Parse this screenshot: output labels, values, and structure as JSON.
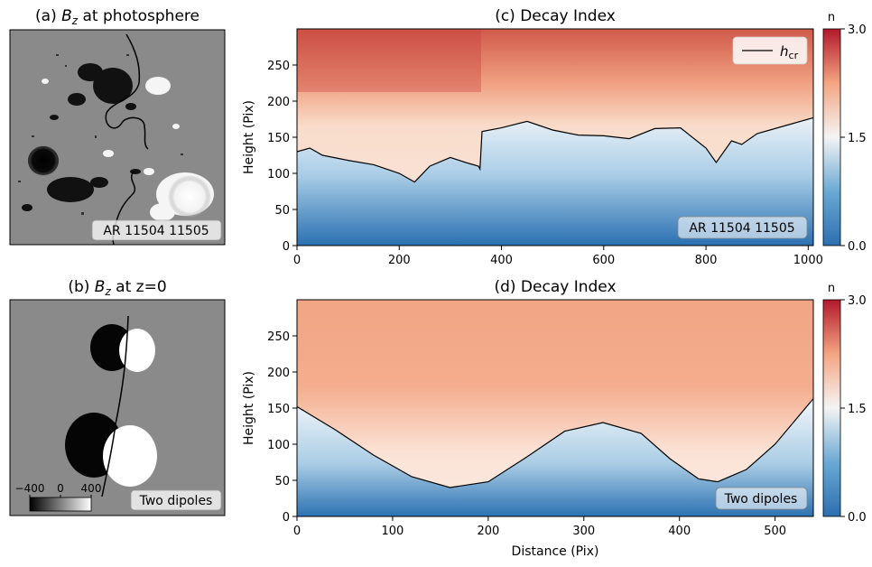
{
  "panels": {
    "a": {
      "title_prefix": "(a) ",
      "title_var": "B",
      "title_sub": "z",
      "title_suffix": " at photosphere",
      "tag": "AR 11504 11505"
    },
    "b": {
      "title_prefix": "(b) ",
      "title_var": "B",
      "title_sub": "z",
      "title_suffix": " at z=0",
      "tag": "Two dipoles",
      "scale_ticks": [
        "−400",
        "0",
        "400"
      ]
    }
  },
  "colorbars": [
    {
      "label": "n",
      "ticks": [
        "3.0",
        "1.5",
        "0.0"
      ],
      "tick_values": [
        3.0,
        1.5,
        0.0
      ]
    },
    {
      "label": "n",
      "ticks": [
        "3.0",
        "1.5",
        "0.0"
      ],
      "tick_values": [
        3.0,
        1.5,
        0.0
      ]
    }
  ],
  "colors": {
    "high": "#b2182b",
    "mid": "#f7f7f7",
    "low": "#2166ac",
    "critical_line": "#000000"
  },
  "chart_data": [
    {
      "type": "heatmap",
      "title": "(c) Decay Index",
      "xlabel": "",
      "ylabel": "Height (Pix)",
      "xlim": [
        0,
        1010
      ],
      "ylim": [
        0,
        300
      ],
      "xticks": [
        0,
        200,
        400,
        600,
        800,
        1000
      ],
      "yticks": [
        0,
        50,
        100,
        150,
        200,
        250
      ],
      "clim": [
        0.0,
        3.0
      ],
      "legend": {
        "label_var": "h",
        "label_sub": "cr",
        "placement": "top-right"
      },
      "annotation": "AR 11504 11505",
      "series": [
        {
          "name": "h_cr",
          "x": [
            0,
            25,
            50,
            100,
            150,
            200,
            230,
            260,
            300,
            330,
            355,
            358,
            362,
            400,
            450,
            500,
            550,
            600,
            650,
            700,
            750,
            800,
            820,
            850,
            870,
            900,
            950,
            1000,
            1010
          ],
          "y": [
            130,
            135,
            125,
            118,
            112,
            100,
            88,
            110,
            122,
            115,
            110,
            106,
            158,
            163,
            172,
            160,
            153,
            152,
            148,
            162,
            163,
            135,
            115,
            145,
            140,
            155,
            165,
            175,
            177
          ]
        }
      ]
    },
    {
      "type": "heatmap",
      "title": "(d) Decay Index",
      "xlabel": "Distance (Pix)",
      "ylabel": "Height (Pix)",
      "xlim": [
        0,
        540
      ],
      "ylim": [
        0,
        300
      ],
      "xticks": [
        0,
        100,
        200,
        300,
        400,
        500
      ],
      "yticks": [
        0,
        50,
        100,
        150,
        200,
        250
      ],
      "clim": [
        0.0,
        3.0
      ],
      "annotation": "Two dipoles",
      "series": [
        {
          "name": "h_cr",
          "x": [
            0,
            40,
            80,
            120,
            160,
            200,
            240,
            280,
            320,
            360,
            390,
            420,
            440,
            470,
            500,
            540
          ],
          "y": [
            152,
            120,
            85,
            55,
            40,
            48,
            82,
            118,
            130,
            115,
            80,
            52,
            48,
            65,
            100,
            163
          ]
        }
      ]
    }
  ]
}
